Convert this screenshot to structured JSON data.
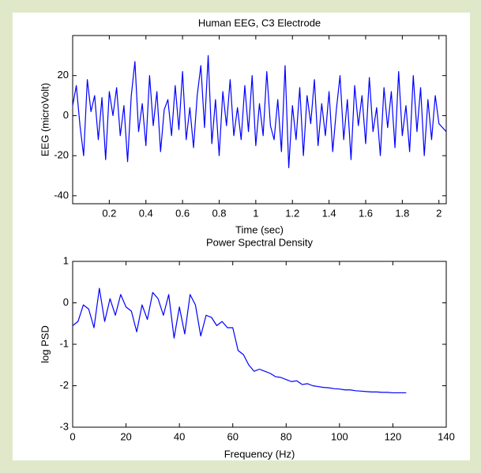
{
  "chart_data": [
    {
      "type": "line",
      "title": "Human EEG, C3 Electrode",
      "x_label": "Time (sec)",
      "y_label": "EEG (microVolt)",
      "x": [
        0,
        0.02,
        0.04,
        0.06,
        0.08,
        0.1,
        0.12,
        0.14,
        0.16,
        0.18,
        0.2,
        0.22,
        0.24,
        0.26,
        0.28,
        0.3,
        0.32,
        0.34,
        0.36,
        0.38,
        0.4,
        0.42,
        0.44,
        0.46,
        0.48,
        0.5,
        0.52,
        0.54,
        0.56,
        0.58,
        0.6,
        0.62,
        0.64,
        0.66,
        0.68,
        0.7,
        0.72,
        0.74,
        0.76,
        0.78,
        0.8,
        0.82,
        0.84,
        0.86,
        0.88,
        0.9,
        0.92,
        0.94,
        0.96,
        0.98,
        1,
        1.02,
        1.04,
        1.06,
        1.08,
        1.1,
        1.12,
        1.14,
        1.16,
        1.18,
        1.2,
        1.22,
        1.24,
        1.26,
        1.28,
        1.3,
        1.32,
        1.34,
        1.36,
        1.38,
        1.4,
        1.42,
        1.44,
        1.46,
        1.48,
        1.5,
        1.52,
        1.54,
        1.56,
        1.58,
        1.6,
        1.62,
        1.64,
        1.66,
        1.68,
        1.7,
        1.72,
        1.74,
        1.76,
        1.78,
        1.8,
        1.82,
        1.84,
        1.86,
        1.88,
        1.9,
        1.92,
        1.94,
        1.96,
        1.98,
        2,
        2.02,
        2.04
      ],
      "series": [
        {
          "color": "#0000ff",
          "values": [
            5,
            15,
            -5,
            -20,
            18,
            2,
            10,
            -12,
            9,
            -22,
            12,
            0,
            14,
            -10,
            5,
            -23,
            10,
            27,
            -8,
            6,
            -15,
            20,
            -5,
            12,
            -18,
            3,
            8,
            -10,
            15,
            -7,
            22,
            -12,
            4,
            -16,
            10,
            25,
            -6,
            30,
            -14,
            8,
            -20,
            12,
            -5,
            18,
            -10,
            4,
            -12,
            15,
            -8,
            20,
            -15,
            6,
            -10,
            22,
            -5,
            -12,
            8,
            -18,
            25,
            -26,
            5,
            -12,
            14,
            -20,
            10,
            -4,
            18,
            -15,
            6,
            -10,
            12,
            -18,
            3,
            20,
            -12,
            8,
            -22,
            15,
            -5,
            10,
            -14,
            19,
            -8,
            4,
            -20,
            14,
            -6,
            12,
            -16,
            22,
            -10,
            5,
            -18,
            20,
            -8,
            14,
            -20,
            8,
            -12,
            10,
            -4,
            -6,
            -8
          ]
        }
      ],
      "xlim": [
        0,
        2.04
      ],
      "xticks": [
        0.2,
        0.4,
        0.6,
        0.8,
        1,
        1.2,
        1.4,
        1.6,
        1.8,
        2
      ],
      "ylim": [
        -44,
        40
      ],
      "yticks": [
        -40,
        -20,
        0,
        20
      ]
    },
    {
      "type": "line",
      "title": "Power Spectral Density",
      "x_label": "Frequency (Hz)",
      "y_label": "log PSD",
      "x": [
        0,
        2,
        4,
        6,
        8,
        10,
        12,
        14,
        16,
        18,
        20,
        22,
        24,
        26,
        28,
        30,
        32,
        34,
        36,
        38,
        40,
        42,
        44,
        46,
        48,
        50,
        52,
        54,
        56,
        58,
        60,
        62,
        64,
        66,
        68,
        70,
        72,
        74,
        76,
        78,
        80,
        82,
        84,
        86,
        88,
        90,
        92,
        94,
        96,
        98,
        100,
        102,
        104,
        106,
        108,
        110,
        112,
        114,
        116,
        118,
        120,
        122,
        124,
        125
      ],
      "series": [
        {
          "color": "#0000ff",
          "values": [
            -0.55,
            -0.45,
            -0.05,
            -0.15,
            -0.6,
            0.35,
            -0.45,
            0.1,
            -0.3,
            0.2,
            -0.1,
            -0.2,
            -0.7,
            -0.05,
            -0.4,
            0.25,
            0.1,
            -0.3,
            0.2,
            -0.85,
            -0.1,
            -0.75,
            0.2,
            -0.05,
            -0.8,
            -0.3,
            -0.35,
            -0.55,
            -0.45,
            -0.6,
            -0.6,
            -1.15,
            -1.25,
            -1.5,
            -1.65,
            -1.6,
            -1.65,
            -1.7,
            -1.78,
            -1.8,
            -1.85,
            -1.9,
            -1.88,
            -1.97,
            -1.95,
            -2.0,
            -2.02,
            -2.04,
            -2.05,
            -2.07,
            -2.08,
            -2.1,
            -2.1,
            -2.12,
            -2.13,
            -2.14,
            -2.15,
            -2.15,
            -2.16,
            -2.16,
            -2.17,
            -2.17,
            -2.17,
            -2.17
          ]
        }
      ],
      "xlim": [
        0,
        140
      ],
      "xticks": [
        0,
        20,
        40,
        60,
        80,
        100,
        120,
        140
      ],
      "ylim": [
        -3,
        1
      ],
      "yticks": [
        -3,
        -2,
        -1,
        0,
        1
      ]
    }
  ]
}
